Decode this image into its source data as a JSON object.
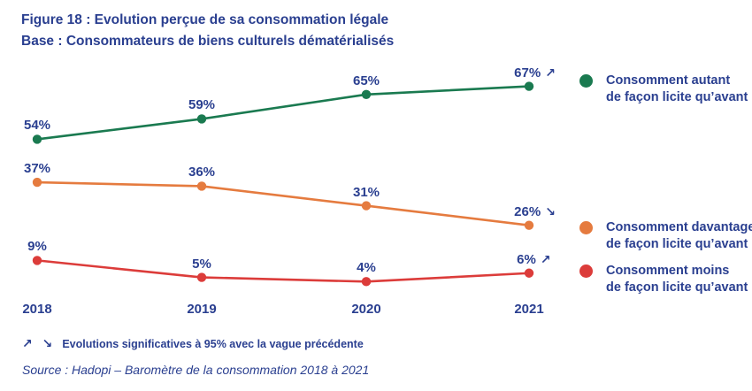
{
  "title": {
    "line1": "Figure 18 : Evolution perçue de sa consommation légale",
    "line2": "Base : Consommateurs de biens culturels dématérialisés"
  },
  "colors": {
    "navy": "#2a3f90",
    "green": "#1a7a50",
    "orange": "#e57b3f",
    "red": "#dc3c3a"
  },
  "chart_data": {
    "type": "line",
    "x": [
      "2018",
      "2019",
      "2020",
      "2021"
    ],
    "value_suffix": "%",
    "grid": false,
    "axes_shown": false,
    "point_labels_shown": true,
    "legend_position": "right",
    "series": [
      {
        "name": "Consomment autant de façon licite qu’avant",
        "color_key": "green",
        "values": [
          54,
          59,
          65,
          67
        ],
        "trend_arrow_2021": "↗"
      },
      {
        "name": "Consomment davantage de façon licite qu’avant",
        "color_key": "orange",
        "values": [
          37,
          36,
          31,
          26
        ],
        "trend_arrow_2021": "↘"
      },
      {
        "name": "Consomment moins de façon licite qu’avant",
        "color_key": "red",
        "values": [
          9,
          5,
          4,
          6
        ],
        "trend_arrow_2021": "↗"
      }
    ]
  },
  "legend": [
    {
      "color_key": "green",
      "lines": [
        "Consomment autant",
        "de façon licite qu’avant"
      ]
    },
    {
      "color_key": "orange",
      "lines": [
        "Consomment davantage",
        "de façon licite qu’avant"
      ]
    },
    {
      "color_key": "red",
      "lines": [
        "Consomment moins",
        "de façon licite qu’avant"
      ]
    }
  ],
  "footnote": {
    "arrows": "↗ ↘",
    "text": "Evolutions significatives à 95% avec la vague précédente"
  },
  "source": "Source : Hadopi – Baromètre de la consommation 2018 à 2021"
}
